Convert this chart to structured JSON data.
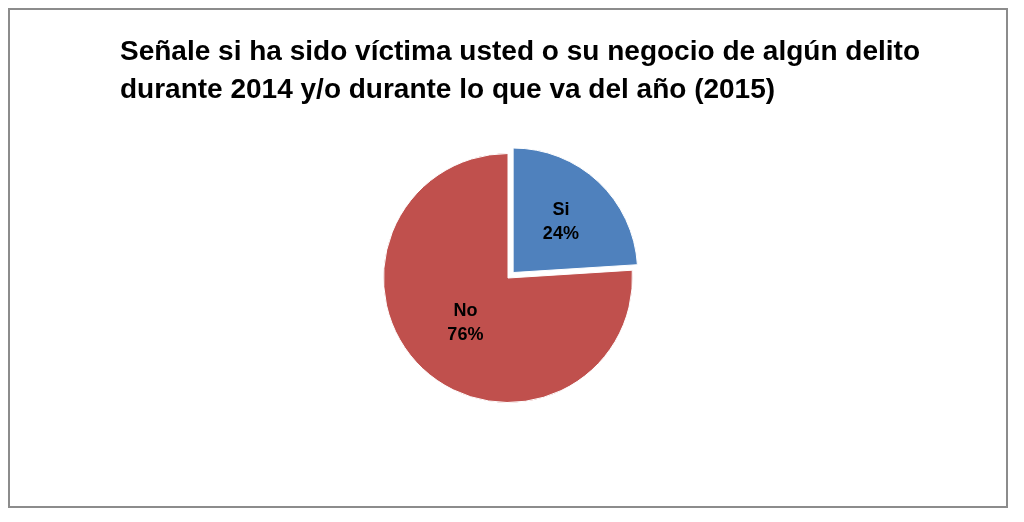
{
  "chart_data": {
    "type": "pie",
    "title": "Señale si ha sido víctima usted o su negocio de algún delito durante 2014  y/o durante lo que va del año (2015)",
    "categories": [
      "Si",
      "No"
    ],
    "values": [
      24,
      76
    ],
    "value_labels": [
      "24%",
      "76%"
    ],
    "colors": [
      "#4f81bd",
      "#c0504d"
    ],
    "legend": false
  }
}
